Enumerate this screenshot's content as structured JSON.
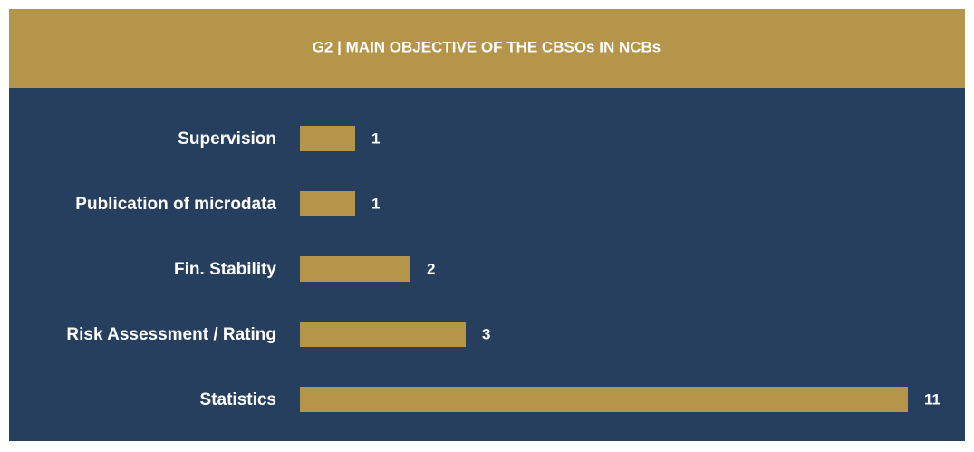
{
  "chart_data": {
    "type": "bar",
    "orientation": "horizontal",
    "title": "G2 | MAIN OBJECTIVE OF THE CBSOs IN NCBs",
    "categories": [
      "Supervision",
      "Publication of microdata",
      "Fin. Stability",
      "Risk Assessment / Rating",
      "Statistics"
    ],
    "values": [
      1,
      1,
      2,
      3,
      11
    ],
    "color": "#b5954a"
  }
}
